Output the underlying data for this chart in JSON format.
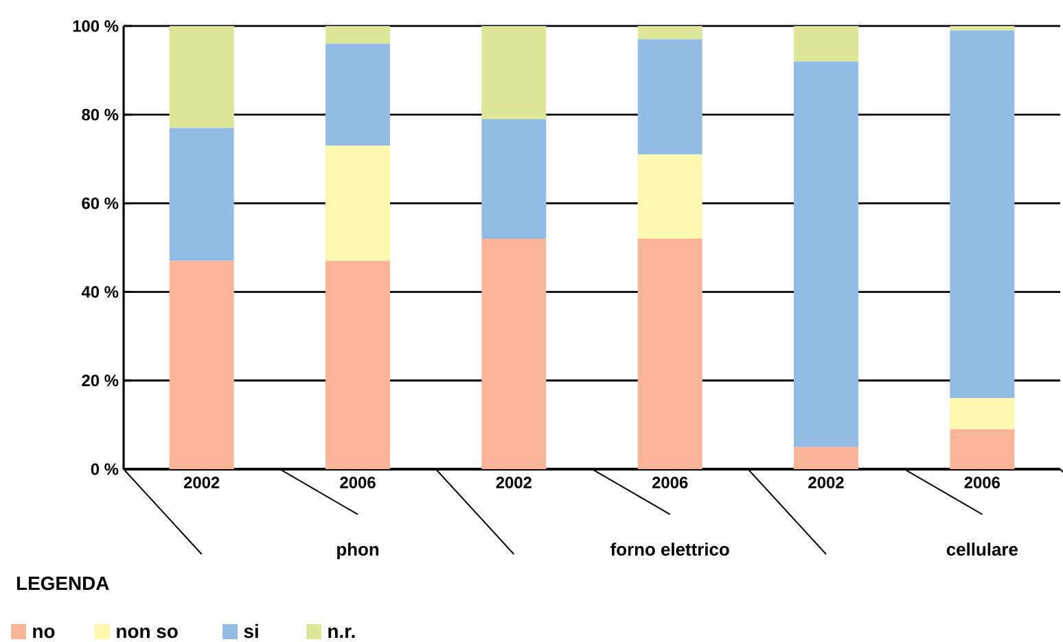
{
  "chart_data": {
    "type": "bar",
    "stacked": true,
    "categories": [
      "2002",
      "2006",
      "2002",
      "2006",
      "2002",
      "2006"
    ],
    "series": [
      {
        "name": "no",
        "color": "#f9b59a",
        "values": [
          47,
          47,
          52,
          52,
          5,
          9
        ]
      },
      {
        "name": "non so",
        "color": "#fff8b0",
        "values": [
          0,
          26,
          0,
          19,
          0,
          7
        ]
      },
      {
        "name": "si",
        "color": "#93bce4",
        "values": [
          30,
          23,
          27,
          26,
          87,
          83
        ]
      },
      {
        "name": "n.r.",
        "color": "#dce799",
        "values": [
          23,
          4,
          21,
          3,
          8,
          1
        ]
      }
    ],
    "ylim": [
      0,
      100
    ],
    "yticks": [
      {
        "value": 0,
        "label": "0 %"
      },
      {
        "value": 20,
        "label": "20 %"
      },
      {
        "value": 40,
        "label": "40 %"
      },
      {
        "value": 60,
        "label": "60 %"
      },
      {
        "value": 80,
        "label": "80 %"
      },
      {
        "value": 100,
        "label": "100 %"
      }
    ],
    "grid": "y",
    "legend": "bottom",
    "legend_title": "LEGENDA",
    "annotations": [
      "phon",
      "forno elettrico",
      "cellulare"
    ]
  }
}
